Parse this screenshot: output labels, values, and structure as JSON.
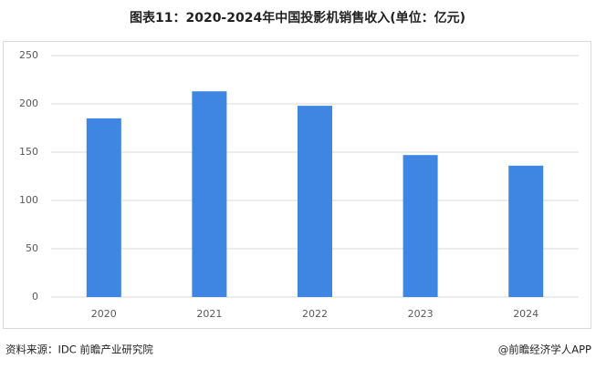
{
  "chart_data": {
    "type": "bar",
    "title": "图表11：2020-2024年中国投影机销售收入(单位：亿元)",
    "categories": [
      "2020",
      "2021",
      "2022",
      "2023",
      "2024"
    ],
    "values": [
      185,
      213,
      198,
      147,
      136
    ],
    "color": "#3f85e2",
    "ylim": [
      0,
      250
    ],
    "yticks": [
      0,
      50,
      100,
      150,
      200,
      250
    ],
    "grid": true
  },
  "footer": {
    "source": "资料来源：IDC 前瞻产业研究院",
    "credit": "@前瞻经济学人APP"
  }
}
